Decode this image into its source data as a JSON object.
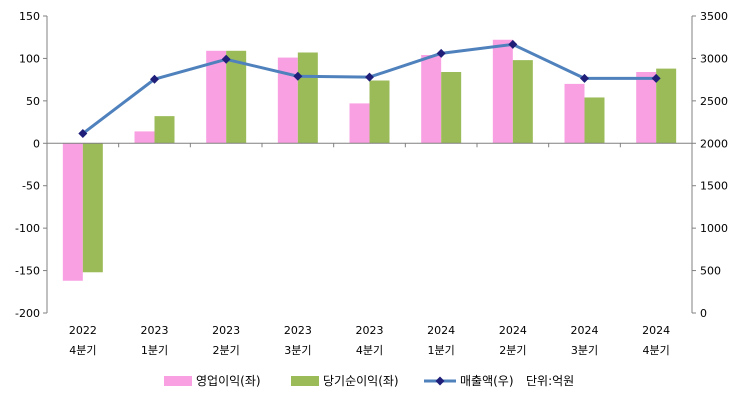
{
  "chart_data": {
    "type": "bar",
    "categories": [
      [
        "2022",
        "4분기"
      ],
      [
        "2023",
        "1분기"
      ],
      [
        "2023",
        "2분기"
      ],
      [
        "2023",
        "3분기"
      ],
      [
        "2023",
        "4분기"
      ],
      [
        "2024",
        "1분기"
      ],
      [
        "2024",
        "2분기"
      ],
      [
        "2024",
        "3분기"
      ],
      [
        "2024",
        "4분기"
      ]
    ],
    "series": [
      {
        "name": "영업이익(좌)",
        "type": "bar",
        "axis": "left",
        "color": "#f9a0e3",
        "values": [
          -162,
          14,
          109,
          101,
          47,
          104,
          122,
          70,
          84
        ]
      },
      {
        "name": "당기순이익(좌)",
        "type": "bar",
        "axis": "left",
        "color": "#9bbb59",
        "values": [
          -152,
          32,
          109,
          107,
          74,
          84,
          98,
          54,
          88
        ]
      },
      {
        "name": "매출액(우)",
        "type": "line",
        "axis": "right",
        "color": "#4f81bd",
        "marker_color": "#1f1f7a",
        "values": [
          2115,
          2755,
          2990,
          2790,
          2780,
          3060,
          3165,
          2765,
          2765
        ]
      }
    ],
    "y_left": {
      "min": -200,
      "max": 150,
      "ticks": [
        150,
        100,
        50,
        0,
        -50,
        -100,
        -150,
        -200
      ]
    },
    "y_right": {
      "min": 0,
      "max": 3500,
      "ticks": [
        3500,
        3000,
        2500,
        2000,
        1500,
        1000,
        500,
        0
      ]
    },
    "legend": {
      "position": "bottom",
      "unit_note": "단위:억원"
    },
    "grid": false
  }
}
